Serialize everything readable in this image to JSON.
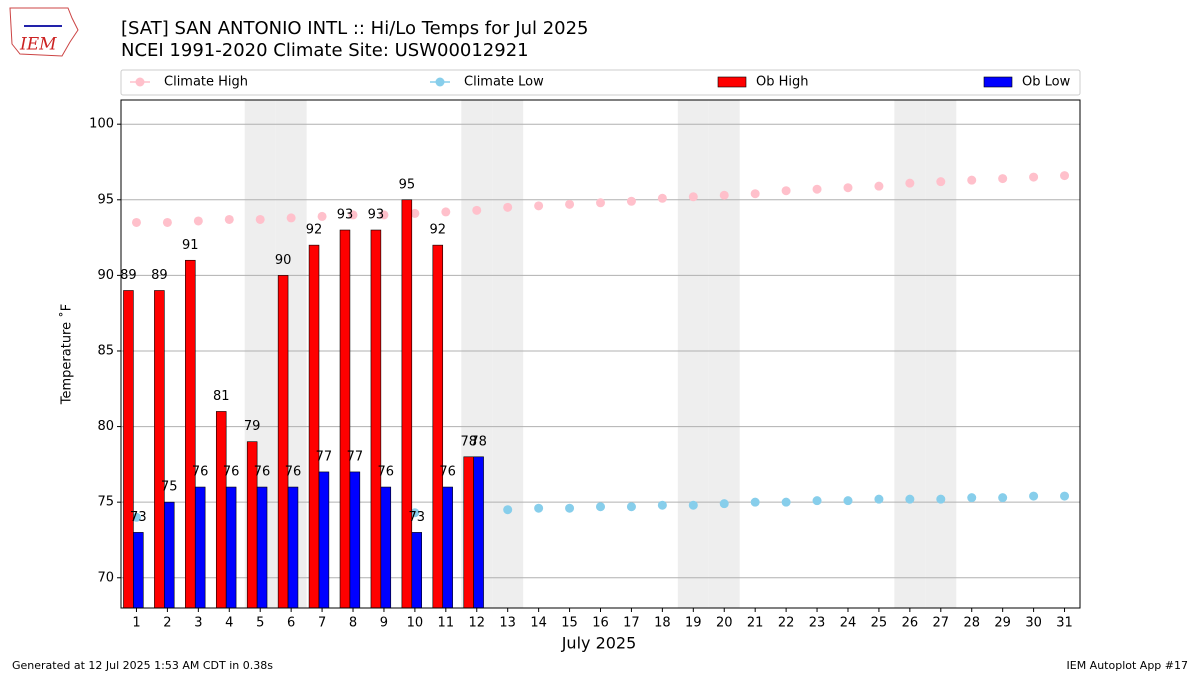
{
  "chart_data": {
    "type": "bar",
    "title": "[SAT] SAN ANTONIO INTL :: Hi/Lo Temps for Jul 2025",
    "subtitle": "NCEI 1991-2020 Climate Site: USW00012921",
    "logo_text": "IEM",
    "xlabel": "July 2025",
    "ylabel": "Temperature ˚F",
    "x": [
      1,
      2,
      3,
      4,
      5,
      6,
      7,
      8,
      9,
      10,
      11,
      12,
      13,
      14,
      15,
      16,
      17,
      18,
      19,
      20,
      21,
      22,
      23,
      24,
      25,
      26,
      27,
      28,
      29,
      30,
      31
    ],
    "xlim": [
      0.5,
      31.5
    ],
    "xticks": [
      1,
      2,
      3,
      4,
      5,
      6,
      7,
      8,
      9,
      10,
      11,
      12,
      13,
      14,
      15,
      16,
      17,
      18,
      19,
      20,
      21,
      22,
      23,
      24,
      25,
      26,
      27,
      28,
      29,
      30,
      31
    ],
    "ylim": [
      68,
      101.6
    ],
    "yticks": [
      70,
      75,
      80,
      85,
      90,
      95,
      100
    ],
    "grid": true,
    "shaded_days": [
      5,
      6,
      12,
      13,
      19,
      20,
      26,
      27
    ],
    "legend": "top",
    "series": [
      {
        "name": "Climate High",
        "type": "line",
        "color": "#ffc0cb",
        "values": [
          93.5,
          93.5,
          93.6,
          93.7,
          93.7,
          93.8,
          93.9,
          94.0,
          94.0,
          94.1,
          94.2,
          94.3,
          94.5,
          94.6,
          94.7,
          94.8,
          94.9,
          95.1,
          95.2,
          95.3,
          95.4,
          95.6,
          95.7,
          95.8,
          95.9,
          96.1,
          96.2,
          96.3,
          96.4,
          96.5,
          96.6
        ]
      },
      {
        "name": "Climate Low",
        "type": "line",
        "color": "#87ceeb",
        "values": [
          74.0,
          74.0,
          74.1,
          74.1,
          74.2,
          74.2,
          74.3,
          74.3,
          74.3,
          74.3,
          74.4,
          74.5,
          74.5,
          74.6,
          74.6,
          74.7,
          74.7,
          74.8,
          74.8,
          74.9,
          75.0,
          75.0,
          75.1,
          75.1,
          75.2,
          75.2,
          75.2,
          75.3,
          75.3,
          75.4,
          75.4
        ]
      },
      {
        "name": "Ob High",
        "type": "bar",
        "color": "#ff0000",
        "values": [
          89,
          89,
          91,
          81,
          79,
          90,
          92,
          93,
          93,
          95,
          92,
          78,
          null,
          null,
          null,
          null,
          null,
          null,
          null,
          null,
          null,
          null,
          null,
          null,
          null,
          null,
          null,
          null,
          null,
          null,
          null
        ]
      },
      {
        "name": "Ob Low",
        "type": "bar",
        "color": "#0000ff",
        "values": [
          73,
          75,
          76,
          76,
          76,
          76,
          77,
          77,
          76,
          73,
          76,
          78,
          null,
          null,
          null,
          null,
          null,
          null,
          null,
          null,
          null,
          null,
          null,
          null,
          null,
          null,
          null,
          null,
          null,
          null,
          null
        ]
      }
    ],
    "footer_left": "Generated at 12 Jul 2025 1:53 AM CDT in 0.38s",
    "footer_right": "IEM Autoplot App #17"
  }
}
